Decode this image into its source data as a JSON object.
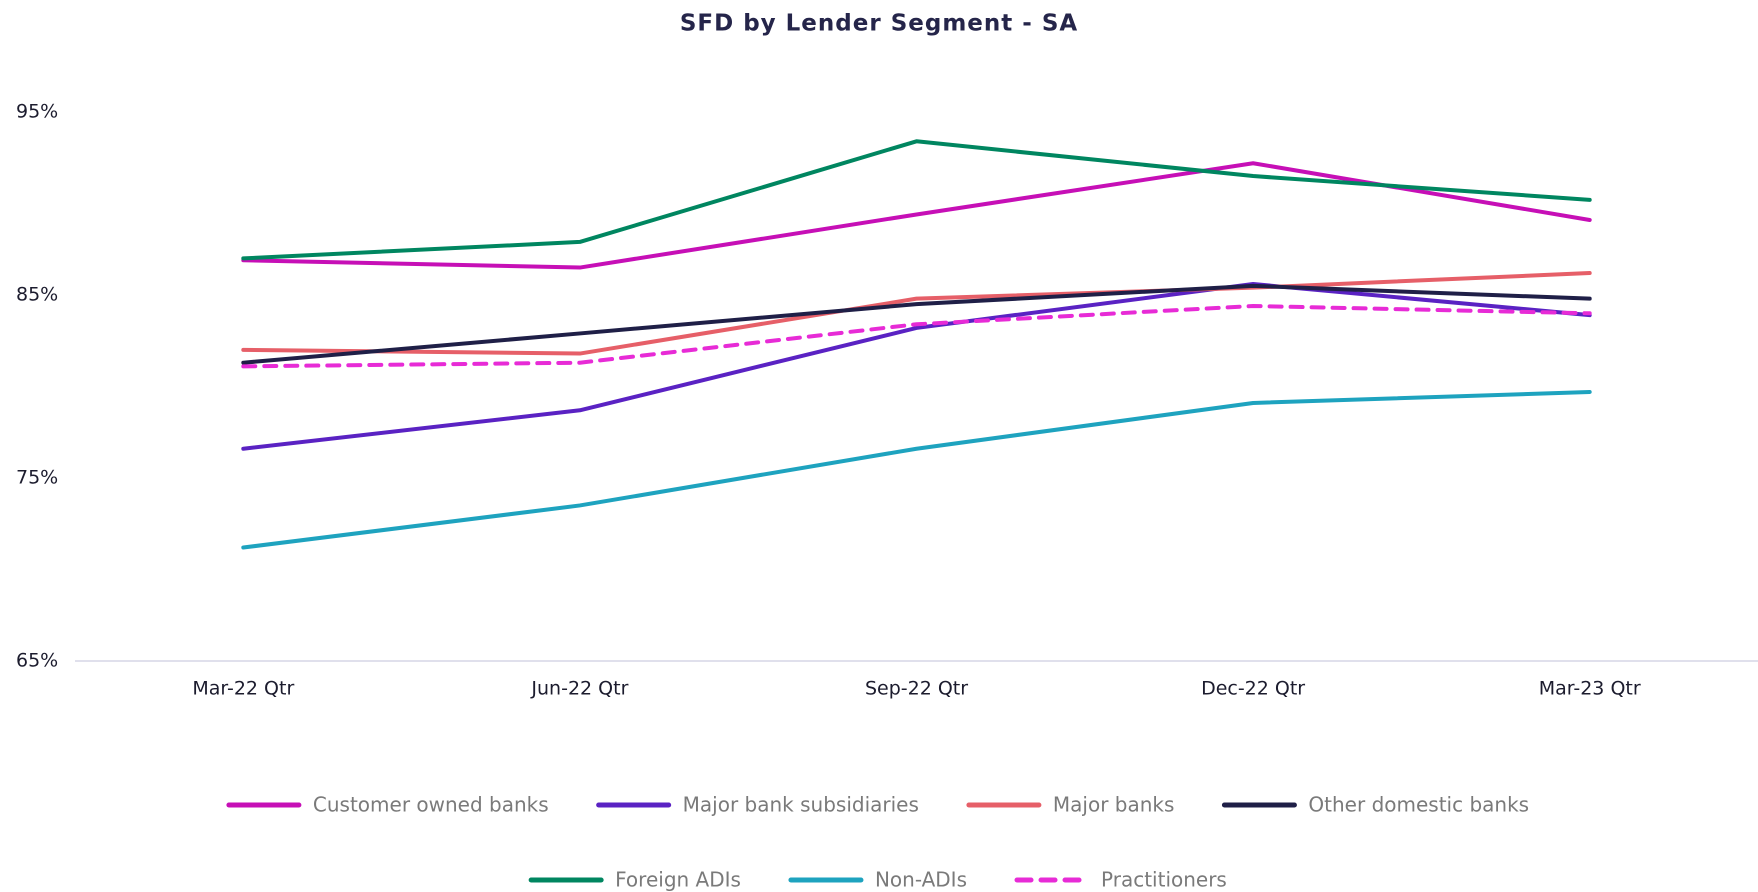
{
  "chart_data": {
    "type": "line",
    "title": "SFD by Lender Segment - SA",
    "categories": [
      "Mar-22 Qtr",
      "Jun-22 Qtr",
      "Sep-22 Qtr",
      "Dec-22 Qtr",
      "Mar-23 Qtr"
    ],
    "ylim": [
      65,
      95
    ],
    "yticks": [
      {
        "value": 65,
        "label": "65%"
      },
      {
        "value": 75,
        "label": "75%"
      },
      {
        "value": 85,
        "label": "85%"
      },
      {
        "value": 95,
        "label": "95%"
      }
    ],
    "grid": false,
    "legend": "bottom",
    "series": [
      {
        "name": "Customer owned banks",
        "color": "#c60fb6",
        "values": [
          86.9,
          86.5,
          89.4,
          92.2,
          89.1
        ]
      },
      {
        "name": "Major bank subsidiaries",
        "color": "#5a22c3",
        "values": [
          76.6,
          78.7,
          83.2,
          85.6,
          83.9
        ]
      },
      {
        "name": "Major banks",
        "color": "#e65f68",
        "values": [
          82.0,
          81.8,
          84.8,
          85.4,
          86.2
        ]
      },
      {
        "name": "Other domestic banks",
        "color": "#1f1f47",
        "values": [
          81.3,
          82.9,
          84.5,
          85.5,
          84.8
        ]
      },
      {
        "name": "Foreign ADIs",
        "color": "#008660",
        "values": [
          87.0,
          87.9,
          93.4,
          91.5,
          90.2
        ]
      },
      {
        "name": "Non-ADIs",
        "color": "#1ea3bf",
        "values": [
          71.2,
          73.5,
          76.6,
          79.1,
          79.7
        ]
      },
      {
        "name": "Practitioners",
        "color": "#e72bd6",
        "dashed": true,
        "values": [
          81.1,
          81.3,
          83.4,
          84.4,
          84.0
        ]
      }
    ]
  }
}
